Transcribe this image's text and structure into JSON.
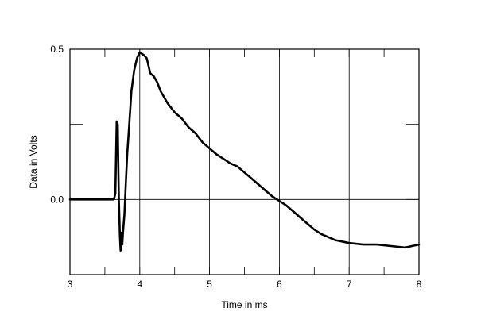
{
  "chart_data": {
    "type": "line",
    "title": "",
    "xlabel": "Time in ms",
    "ylabel": "Data in Volts",
    "xlim": [
      3,
      8
    ],
    "ylim": [
      -0.25,
      0.5
    ],
    "grid": true,
    "x_ticks": [
      3,
      4,
      5,
      6,
      7,
      8
    ],
    "x_tick_labels": [
      "3",
      "4",
      "5",
      "6",
      "7",
      "8"
    ],
    "y_ticks": [
      0.5,
      0.0
    ],
    "y_tick_labels": [
      "0.5",
      "0.0"
    ],
    "series": [
      {
        "x": [
          3.0,
          3.5,
          3.63,
          3.65,
          3.67,
          3.685,
          3.69,
          3.7,
          3.715,
          3.725,
          3.735,
          3.75,
          3.76,
          3.77,
          3.78,
          3.79,
          3.8,
          3.82,
          3.85,
          3.88,
          3.92,
          3.96,
          4.0,
          4.03,
          4.06,
          4.1,
          4.15,
          4.2,
          4.25,
          4.3,
          4.4,
          4.5,
          4.6,
          4.7,
          4.8,
          4.9,
          5.0,
          5.1,
          5.2,
          5.3,
          5.4,
          5.5,
          5.6,
          5.7,
          5.8,
          5.9,
          6.0,
          6.1,
          6.2,
          6.3,
          6.4,
          6.5,
          6.6,
          6.7,
          6.8,
          6.9,
          7.0,
          7.2,
          7.4,
          7.6,
          7.8,
          8.0
        ],
        "y": [
          0.0,
          0.0,
          0.0,
          0.02,
          0.26,
          0.25,
          0.15,
          0.0,
          -0.12,
          -0.17,
          -0.11,
          -0.15,
          -0.11,
          -0.08,
          -0.05,
          0.0,
          0.05,
          0.15,
          0.25,
          0.36,
          0.43,
          0.47,
          0.49,
          0.485,
          0.48,
          0.47,
          0.42,
          0.41,
          0.39,
          0.36,
          0.32,
          0.29,
          0.27,
          0.24,
          0.22,
          0.19,
          0.17,
          0.15,
          0.135,
          0.12,
          0.11,
          0.09,
          0.07,
          0.05,
          0.03,
          0.01,
          -0.005,
          -0.02,
          -0.04,
          -0.06,
          -0.08,
          -0.1,
          -0.115,
          -0.125,
          -0.135,
          -0.14,
          -0.145,
          -0.15,
          -0.15,
          -0.155,
          -0.16,
          -0.15
        ]
      }
    ]
  }
}
